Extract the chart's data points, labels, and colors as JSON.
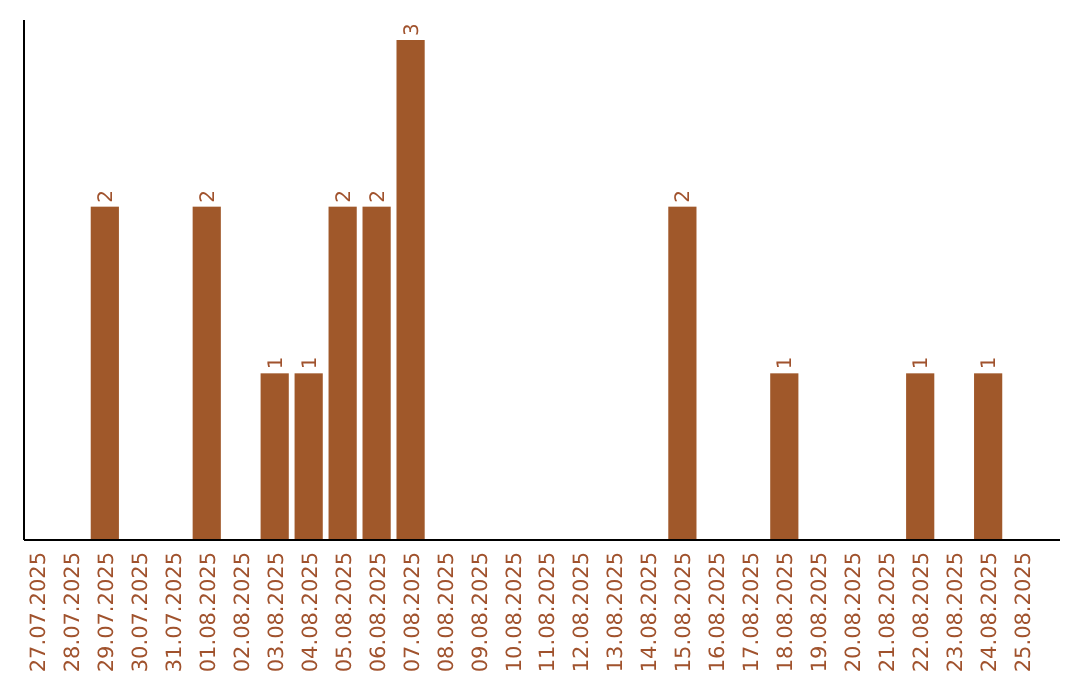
{
  "chart_data": {
    "type": "bar",
    "categories": [
      "27.07.2025",
      "28.07.2025",
      "29.07.2025",
      "30.07.2025",
      "31.07.2025",
      "01.08.2025",
      "02.08.2025",
      "03.08.2025",
      "04.08.2025",
      "05.08.2025",
      "06.08.2025",
      "07.08.2025",
      "08.08.2025",
      "09.08.2025",
      "10.08.2025",
      "11.08.2025",
      "12.08.2025",
      "13.08.2025",
      "14.08.2025",
      "15.08.2025",
      "16.08.2025",
      "17.08.2025",
      "18.08.2025",
      "19.08.2025",
      "20.08.2025",
      "21.08.2025",
      "22.08.2025",
      "23.08.2025",
      "24.08.2025",
      "25.08.2025"
    ],
    "values": [
      0,
      0,
      2,
      0,
      0,
      2,
      0,
      1,
      1,
      2,
      2,
      3,
      0,
      0,
      0,
      0,
      0,
      0,
      0,
      2,
      0,
      0,
      1,
      0,
      0,
      0,
      1,
      0,
      1,
      0
    ],
    "value_labels": [
      null,
      null,
      "2",
      null,
      null,
      "2",
      null,
      "1",
      "1",
      "2",
      "2",
      "3",
      null,
      null,
      null,
      null,
      null,
      null,
      null,
      "2",
      null,
      null,
      "1",
      null,
      null,
      null,
      "1",
      null,
      "1",
      null
    ],
    "color": "#a0582a"
  }
}
